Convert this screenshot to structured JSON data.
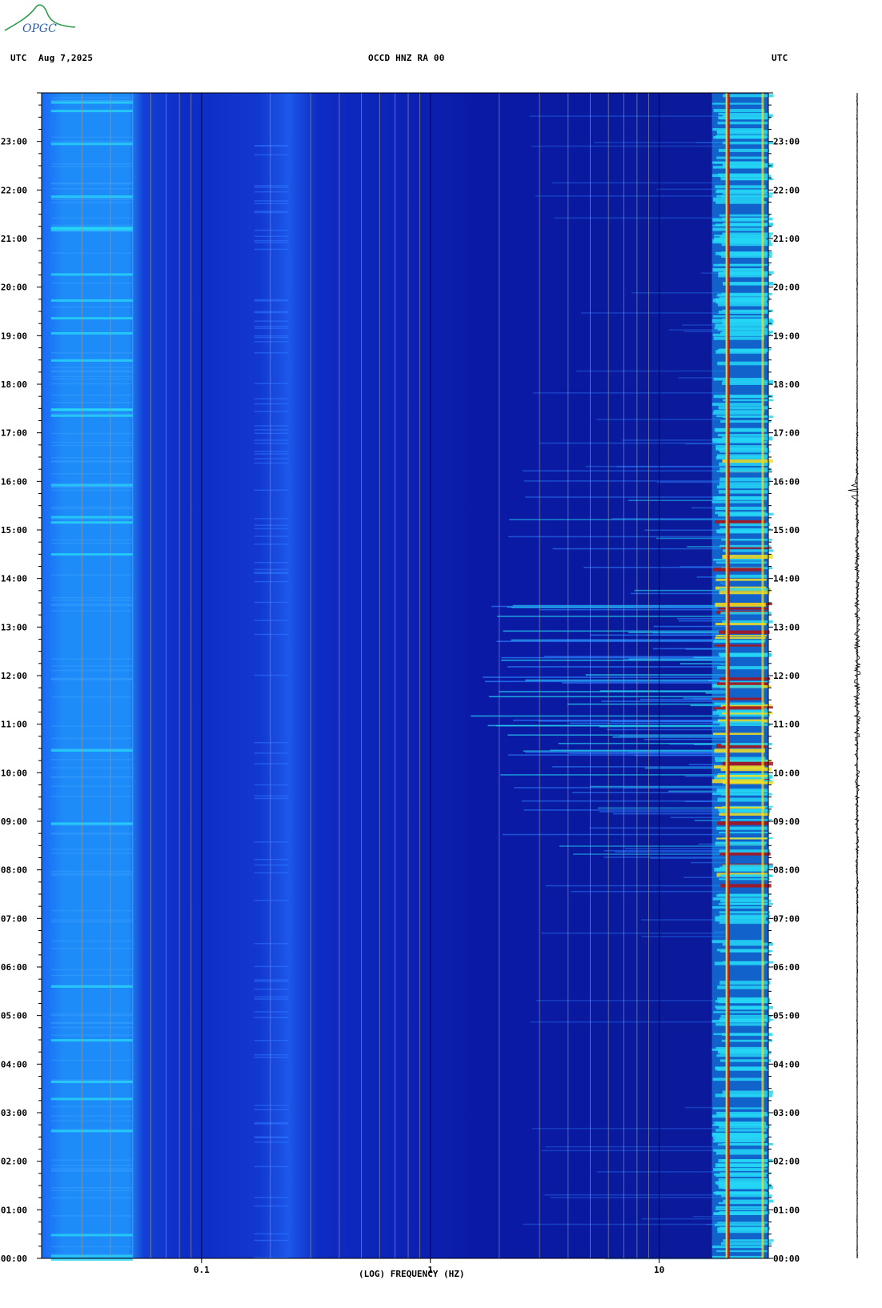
{
  "header": {
    "utc_left": "UTC",
    "date": "Aug 7,2025",
    "title": "OCCD HNZ RA 00",
    "utc_right": "UTC"
  },
  "logo": {
    "text": "OPGC",
    "colors": {
      "arc": "#2e9a4a",
      "text": "#2a5fa8"
    }
  },
  "colors": {
    "low": "#0a1a9a",
    "mid": "#1c5cf0",
    "cyan": "#25d6f5",
    "yellow": "#f5e020",
    "red": "#b01010",
    "grid_minor": "#9a9a9a",
    "grid_major": "#000000",
    "frame": "#000000"
  },
  "chart_data": {
    "type": "heatmap",
    "title": "OCCD HNZ RA 00",
    "xlabel": "(LOG) FREQUENCY (HZ)",
    "ylabel": "UTC",
    "x_scale": "log",
    "xlim": [
      0.02,
      30
    ],
    "x_tick_labels": [
      "0.1",
      "1",
      "10"
    ],
    "x_ticks": [
      0.1,
      1,
      10
    ],
    "ylim": [
      0,
      24
    ],
    "y_tick_labels": [
      "00:00",
      "01:00",
      "02:00",
      "03:00",
      "04:00",
      "05:00",
      "06:00",
      "07:00",
      "08:00",
      "09:00",
      "10:00",
      "11:00",
      "12:00",
      "13:00",
      "14:00",
      "15:00",
      "16:00",
      "17:00",
      "18:00",
      "19:00",
      "20:00",
      "21:00",
      "22:00",
      "23:00"
    ],
    "y_ticks": [
      0,
      1,
      2,
      3,
      4,
      5,
      6,
      7,
      8,
      9,
      10,
      11,
      12,
      13,
      14,
      15,
      16,
      17,
      18,
      19,
      20,
      21,
      22,
      23
    ],
    "grid": true,
    "colorbar": false,
    "features": [
      {
        "name": "low-frequency band",
        "x_range": [
          0.02,
          0.05
        ],
        "level": "medium"
      },
      {
        "name": "microseism band",
        "x_range": [
          0.17,
          0.25
        ],
        "level": "medium"
      },
      {
        "name": "persistent line",
        "x": 20,
        "level": "high"
      },
      {
        "name": "daytime noise",
        "x_range": [
          3,
          30
        ],
        "t_range": [
          7,
          17
        ],
        "level": "high"
      }
    ],
    "seismogram": {
      "position": "right",
      "peak_hour": 15.8
    }
  }
}
